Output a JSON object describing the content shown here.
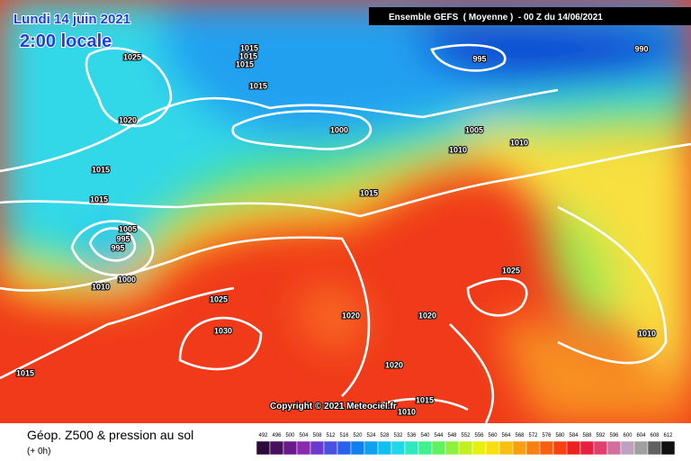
{
  "header": {
    "date": "Lundi 14 juin 2021",
    "time": "2:00 locale",
    "run": "Ensemble GEFS  ( Moyenne )  - 00 Z du 14/06/2021"
  },
  "isobars": [
    "1025",
    "1015",
    "1015",
    "1015",
    "1015",
    "995",
    "990",
    "1020",
    "1000",
    "1005",
    "1010",
    "1010",
    "1015",
    "1015",
    "1015",
    "1005",
    "995",
    "995",
    "1010",
    "1000",
    "1025",
    "1025",
    "1030",
    "1020",
    "1020",
    "1010",
    "1015",
    "1020",
    "1015",
    "1010"
  ],
  "copyright": "Copyright © 2021 Meteociel.fr",
  "footer": {
    "title": "Géop. Z500 & pression au sol",
    "lead": "(+ 0h)"
  },
  "legend": {
    "labels": [
      492,
      496,
      500,
      504,
      508,
      512,
      516,
      520,
      524,
      528,
      532,
      536,
      540,
      544,
      548,
      552,
      556,
      560,
      564,
      568,
      572,
      576,
      580,
      584,
      588,
      592,
      596,
      600,
      604,
      608,
      612
    ],
    "colors": [
      "#2d0a3a",
      "#4a1060",
      "#6a1a8a",
      "#8a2ab0",
      "#6a3ad0",
      "#4a50e0",
      "#2a60f0",
      "#1080f0",
      "#10a0f0",
      "#10c0f0",
      "#20d8e8",
      "#30e8c0",
      "#40f090",
      "#60f060",
      "#90f040",
      "#c0f020",
      "#e8f010",
      "#f8e010",
      "#f8c010",
      "#f8a010",
      "#f88010",
      "#f86010",
      "#f84010",
      "#f02020",
      "#e82040",
      "#e04070",
      "#d070a0",
      "#c0a0c0",
      "#a0a0a0",
      "#606060",
      "#101010"
    ]
  }
}
